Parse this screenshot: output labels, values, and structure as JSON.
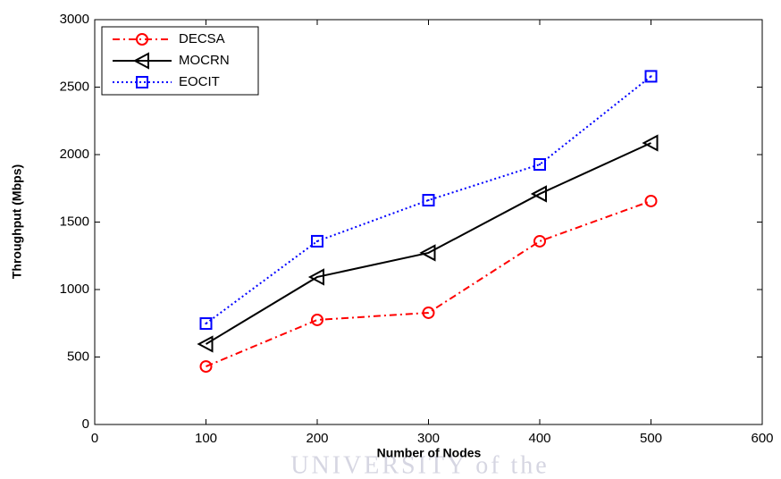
{
  "chart_data": {
    "type": "line",
    "xlabel": "Number of Nodes",
    "ylabel": "Throughput (Mbps)",
    "watermark": "UNIVERSITY of the",
    "x": [
      100,
      200,
      300,
      400,
      500
    ],
    "series": [
      {
        "name": "DECSA",
        "color": "#ff0000",
        "style": "dashdot",
        "marker": "circle",
        "values": [
          430,
          775,
          828,
          1358,
          1656
        ]
      },
      {
        "name": "MOCRN",
        "color": "#000000",
        "style": "solid",
        "marker": "triangle-left",
        "values": [
          596,
          1093,
          1272,
          1709,
          2086
        ]
      },
      {
        "name": "EOCIT",
        "color": "#0000ff",
        "style": "dotted",
        "marker": "square",
        "values": [
          748,
          1358,
          1662,
          1927,
          2580
        ]
      }
    ],
    "xlim": [
      0,
      600
    ],
    "xticks": [
      0,
      100,
      200,
      300,
      400,
      500,
      600
    ],
    "ylim": [
      0,
      3000
    ],
    "yticks": [
      0,
      500,
      1000,
      1500,
      2000,
      2500,
      3000
    ],
    "grid": false,
    "legend": "top-left"
  }
}
